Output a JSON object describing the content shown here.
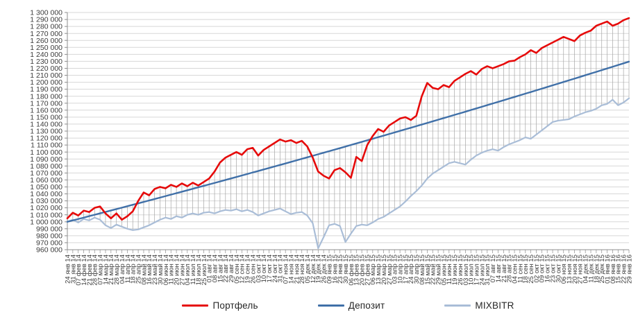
{
  "chart_data": {
    "type": "line",
    "title": "",
    "xlabel": "",
    "ylabel": "",
    "ylim": [
      960000,
      1300000
    ],
    "ytick_step": 10000,
    "grid": "horizontal-major + high-low vertical lines",
    "legend_position": "bottom",
    "gridline_color": "#d7d7d7",
    "axis_color": "#8c8c8c",
    "highlow_line_color": "#a6a6a6",
    "tick_label_color": "#3b3b3b",
    "x_labels": [
      "24 янв 14",
      "31 янв 14",
      "07 фев 14",
      "14 фев 14",
      "21 фев 14",
      "28 фев 14",
      "07 мар 14",
      "14 мар 14",
      "21 мар 14",
      "28 мар 14",
      "04 апр 14",
      "11 апр 14",
      "18 апр 14",
      "25 апр 14",
      "08 май 14",
      "16 май 14",
      "23 май 14",
      "30 май 14",
      "06 июн 14",
      "11 июн 14",
      "20 июн 14",
      "27 июн 14",
      "04 июл 14",
      "11 июл 14",
      "18 июл 14",
      "25 июл 14",
      "01 авг 14",
      "08 авг 14",
      "15 авг 14",
      "22 авг 14",
      "29 авг 14",
      "05 сен 14",
      "12 сен 14",
      "19 сен 14",
      "26 сен 14",
      "03 окт 14",
      "10 окт 14",
      "17 окт 14",
      "24 окт 14",
      "31 окт 14",
      "07 ноя 14",
      "14 ноя 14",
      "21 ноя 14",
      "28 ноя 14",
      "05 дек 14",
      "12 дек 14",
      "19 дек 14",
      "26 дек 14",
      "09 янв 15",
      "16 янв 15",
      "23 янв 15",
      "30 янв 15",
      "06 фев 15",
      "13 фев 15",
      "20 фев 15",
      "27 фев 15",
      "06 мар 15",
      "13 мар 15",
      "20 мар 15",
      "27 мар 15",
      "03 апр 15",
      "10 апр 15",
      "17 апр 15",
      "24 апр 15",
      "30 апр 15",
      "08 май 15",
      "15 май 15",
      "22 май 15",
      "29 май 15",
      "05 июн 15",
      "11 июн 15",
      "19 июн 15",
      "26 июн 15",
      "03 июл 15",
      "10 июл 15",
      "17 июл 15",
      "24 июл 15",
      "31 июл 15",
      "07 авг 15",
      "14 авг 15",
      "21 авг 15",
      "28 авг 15",
      "04 сен 15",
      "11 сен 15",
      "18 сен 15",
      "25 сен 15",
      "02 окт 15",
      "09 окт 15",
      "16 окт 15",
      "23 окт 15",
      "30 окт 15",
      "06 ноя 15",
      "13 ноя 15",
      "20 ноя 15",
      "27 ноя 15",
      "04 дек 15",
      "11 дек 15",
      "18 дек 15",
      "25 дек 15",
      "01 янв 16",
      "08 янв 16",
      "15 янв 16",
      "22 янв 16",
      "29 янв 16"
    ],
    "series": [
      {
        "name": "Портфель",
        "color": "#e60a0a",
        "width": 2.6,
        "values": [
          1005000,
          1013000,
          1009000,
          1016000,
          1014000,
          1020000,
          1022000,
          1012000,
          1005000,
          1012000,
          1003000,
          1008000,
          1015000,
          1030000,
          1042000,
          1038000,
          1047000,
          1050000,
          1048000,
          1053000,
          1050000,
          1055000,
          1051000,
          1056000,
          1052000,
          1057000,
          1062000,
          1072000,
          1085000,
          1092000,
          1096000,
          1100000,
          1096000,
          1104000,
          1106000,
          1095000,
          1103000,
          1108000,
          1113000,
          1118000,
          1115000,
          1117000,
          1113000,
          1116000,
          1108000,
          1092000,
          1072000,
          1066000,
          1062000,
          1074000,
          1077000,
          1071000,
          1063000,
          1093000,
          1087000,
          1110000,
          1123000,
          1133000,
          1129000,
          1138000,
          1143000,
          1148000,
          1150000,
          1146000,
          1152000,
          1180000,
          1199000,
          1192000,
          1190000,
          1196000,
          1193000,
          1202000,
          1207000,
          1212000,
          1216000,
          1211000,
          1219000,
          1223000,
          1220000,
          1223000,
          1226000,
          1230000,
          1231000,
          1236000,
          1240000,
          1246000,
          1242000,
          1249000,
          1253000,
          1257000,
          1261000,
          1265000,
          1262000,
          1259000,
          1267000,
          1271000,
          1274000,
          1281000,
          1284000,
          1287000,
          1281000,
          1284000,
          1289000,
          1292000
        ]
      },
      {
        "name": "Депозит",
        "color": "#4070a8",
        "width": 2.4,
        "values": [
          1000000,
          1002000,
          1004000,
          1006000,
          1008100,
          1010100,
          1012100,
          1014100,
          1016200,
          1018200,
          1020300,
          1022300,
          1024400,
          1026400,
          1028500,
          1030600,
          1032600,
          1034700,
          1036800,
          1038900,
          1041000,
          1043100,
          1045200,
          1047300,
          1049400,
          1051500,
          1053600,
          1055700,
          1057800,
          1060000,
          1062100,
          1064200,
          1066400,
          1068500,
          1070700,
          1072800,
          1075000,
          1077100,
          1079300,
          1081500,
          1083600,
          1085800,
          1088000,
          1090200,
          1092400,
          1094600,
          1096800,
          1099000,
          1101200,
          1103400,
          1105600,
          1107800,
          1110100,
          1112300,
          1114500,
          1116800,
          1119000,
          1121300,
          1123500,
          1125800,
          1128000,
          1130300,
          1132600,
          1134800,
          1137100,
          1139400,
          1141700,
          1144000,
          1146300,
          1148600,
          1150900,
          1153200,
          1155500,
          1157800,
          1160200,
          1162500,
          1164800,
          1167200,
          1169500,
          1171900,
          1174200,
          1176600,
          1178900,
          1181300,
          1183700,
          1186000,
          1188400,
          1190800,
          1193200,
          1195600,
          1198000,
          1200400,
          1202800,
          1205200,
          1207600,
          1210100,
          1212500,
          1214900,
          1217400,
          1219800,
          1222200,
          1224700,
          1227100,
          1229600
        ]
      },
      {
        "name": "MIXBITR",
        "color": "#a9bdd7",
        "width": 2.2,
        "values": [
          1000000,
          1003000,
          999000,
          1004000,
          1002000,
          1006000,
          1003000,
          995000,
          991000,
          996000,
          993000,
          990000,
          988000,
          989000,
          992000,
          995000,
          999000,
          1003000,
          1006000,
          1004000,
          1008000,
          1006000,
          1010000,
          1012000,
          1010000,
          1013000,
          1014000,
          1012000,
          1015000,
          1017000,
          1016000,
          1018000,
          1015000,
          1017000,
          1014000,
          1009000,
          1012000,
          1015000,
          1017000,
          1019000,
          1015000,
          1011000,
          1013000,
          1014000,
          1009000,
          998000,
          962000,
          978000,
          995000,
          997000,
          994000,
          971000,
          983000,
          994000,
          996000,
          995000,
          999000,
          1004000,
          1007000,
          1012000,
          1017000,
          1022000,
          1029000,
          1037000,
          1044000,
          1052000,
          1062000,
          1069000,
          1074000,
          1079000,
          1084000,
          1086000,
          1084000,
          1082000,
          1089000,
          1095000,
          1099000,
          1102000,
          1104000,
          1102000,
          1107000,
          1111000,
          1114000,
          1117000,
          1121000,
          1119000,
          1125000,
          1131000,
          1137000,
          1143000,
          1145000,
          1146000,
          1147000,
          1151000,
          1154000,
          1157000,
          1159000,
          1162000,
          1167000,
          1169000,
          1175000,
          1167000,
          1171000,
          1177000
        ]
      }
    ]
  }
}
